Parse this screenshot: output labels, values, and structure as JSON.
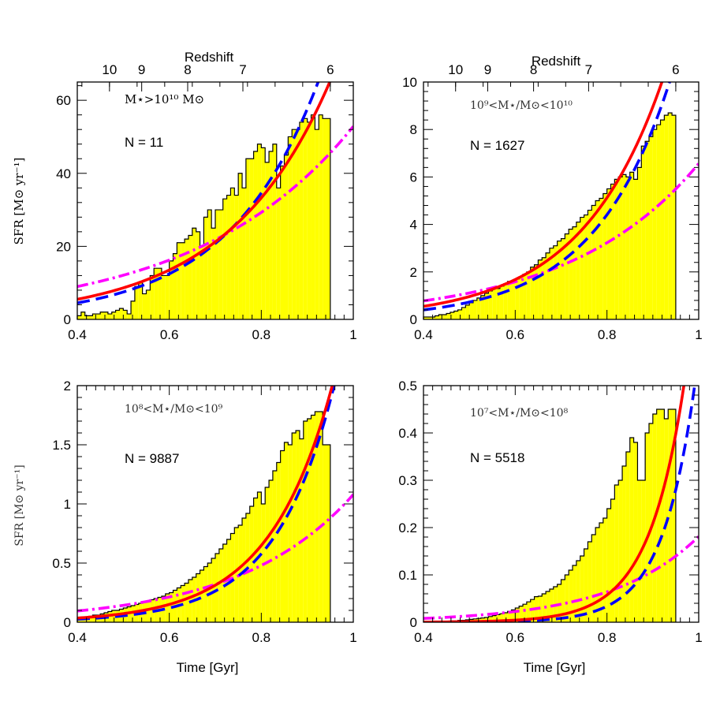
{
  "chart_data": [
    {
      "type": "histogram",
      "mass_label": "M⋆>10¹⁰ M⊙",
      "count_label": "N = 11",
      "xlim": [
        0.4,
        1.0
      ],
      "ylim": [
        0,
        65
      ],
      "yticks_major": [
        0,
        20,
        40,
        60
      ],
      "xticks_major": [
        0.4,
        0.6,
        0.8,
        1.0
      ],
      "ylabel": "SFR [M⊙ yr⁻¹]",
      "xlabel": "",
      "top_axis_label": "Redshift",
      "top_ticks": [
        10,
        9,
        8,
        7,
        6
      ],
      "hist_x_range": [
        0.4,
        0.95
      ],
      "hist_values": [
        1,
        2,
        1,
        1,
        1.5,
        1.5,
        2,
        2,
        1.5,
        2,
        2.5,
        3,
        2.5,
        1.5,
        5,
        9,
        10,
        7,
        8,
        12,
        14,
        14,
        12,
        12,
        16,
        18,
        21,
        21,
        22,
        23,
        25,
        24,
        20,
        28,
        30,
        25,
        30,
        30,
        33,
        34,
        36,
        34,
        40,
        36,
        44,
        44,
        46,
        48,
        47,
        43,
        46,
        48,
        36,
        42,
        45,
        50,
        52,
        52,
        54,
        55,
        54,
        56,
        52,
        56,
        55,
        55
      ],
      "curves": {
        "red_solid": {
          "type": "exp",
          "a": 5.5,
          "b": 4.5
        },
        "blue_dashed": {
          "type": "exp",
          "a": 4.5,
          "b": 5.1
        },
        "magenta_dashdot": {
          "type": "exp",
          "a": 9.0,
          "b": 2.95
        }
      }
    },
    {
      "type": "histogram",
      "mass_label": "10⁹<M⋆/M⊙<10¹⁰",
      "count_label": "N = 1627",
      "xlim": [
        0.4,
        1.0
      ],
      "ylim": [
        0,
        10
      ],
      "yticks_major": [
        0,
        2,
        4,
        6,
        8,
        10
      ],
      "xticks_major": [
        0.4,
        0.6,
        0.8,
        1.0
      ],
      "ylabel": "",
      "xlabel": "",
      "top_axis_label": "Redshift",
      "top_ticks": [
        10,
        9,
        8,
        7,
        6
      ],
      "hist_x_range": [
        0.4,
        0.95
      ],
      "hist_values": [
        0.1,
        0.1,
        0.1,
        0.15,
        0.2,
        0.2,
        0.25,
        0.3,
        0.35,
        0.4,
        0.5,
        0.6,
        0.7,
        0.8,
        0.9,
        1.0,
        1.1,
        1.2,
        1.3,
        1.3,
        1.4,
        1.5,
        1.6,
        1.6,
        1.7,
        1.8,
        1.9,
        2.0,
        2.2,
        2.3,
        2.5,
        2.6,
        2.8,
        3.0,
        3.1,
        3.3,
        3.4,
        3.6,
        3.8,
        3.9,
        4.1,
        4.3,
        4.4,
        4.6,
        4.8,
        5.0,
        5.1,
        5.3,
        5.5,
        5.7,
        5.9,
        6.0,
        6.1,
        6.0,
        6.2,
        5.9,
        6.4,
        7.3,
        7.5,
        7.7,
        8.0,
        8.2,
        8.4,
        8.6,
        8.7,
        8.6
      ],
      "curves": {
        "red_solid": {
          "type": "exp",
          "a": 0.55,
          "b": 5.58
        },
        "blue_dashed": {
          "type": "exp",
          "a": 0.4,
          "b": 6.0
        },
        "magenta_dashdot": {
          "type": "exp",
          "a": 0.78,
          "b": 3.55
        }
      }
    },
    {
      "type": "histogram",
      "mass_label": "10⁸<M⋆/M⊙<10⁹",
      "count_label": "N = 9887",
      "xlim": [
        0.4,
        1.0
      ],
      "ylim": [
        0,
        2
      ],
      "yticks_major": [
        0,
        0.5,
        1,
        1.5,
        2
      ],
      "xticks_major": [
        0.4,
        0.6,
        0.8,
        1.0
      ],
      "ylabel": "SFR [M⊙ yr⁻¹]",
      "xlabel": "Time [Gyr]",
      "top_axis_label": "",
      "top_ticks": [],
      "hist_x_range": [
        0.4,
        0.95
      ],
      "hist_values": [
        0.03,
        0.04,
        0.04,
        0.05,
        0.06,
        0.06,
        0.07,
        0.08,
        0.09,
        0.1,
        0.1,
        0.11,
        0.12,
        0.13,
        0.14,
        0.15,
        0.16,
        0.17,
        0.18,
        0.19,
        0.2,
        0.21,
        0.22,
        0.24,
        0.25,
        0.27,
        0.29,
        0.31,
        0.33,
        0.36,
        0.38,
        0.41,
        0.44,
        0.47,
        0.5,
        0.54,
        0.58,
        0.62,
        0.66,
        0.7,
        0.75,
        0.8,
        0.82,
        0.88,
        0.92,
        0.98,
        1.05,
        1.1,
        1.0,
        1.14,
        1.2,
        1.28,
        1.35,
        1.45,
        1.52,
        1.5,
        1.6,
        1.62,
        1.55,
        1.7,
        1.72,
        1.75,
        1.78,
        1.78,
        1.5,
        1.5
      ],
      "curves": {
        "red_solid": {
          "type": "exp",
          "a": 0.035,
          "b": 7.3
        },
        "blue_dashed": {
          "type": "exp",
          "a": 0.025,
          "b": 7.85
        },
        "magenta_dashdot": {
          "type": "exp",
          "a": 0.095,
          "b": 4.05
        }
      }
    },
    {
      "type": "histogram",
      "mass_label": "10⁷<M⋆/M⊙<10⁸",
      "count_label": "N = 5518",
      "xlim": [
        0.4,
        1.0
      ],
      "ylim": [
        0,
        0.5
      ],
      "yticks_major": [
        0,
        0.1,
        0.2,
        0.3,
        0.4,
        0.5
      ],
      "xticks_major": [
        0.4,
        0.6,
        0.8,
        1.0
      ],
      "ylabel": "",
      "xlabel": "Time [Gyr]",
      "top_axis_label": "",
      "top_ticks": [],
      "hist_x_range": [
        0.4,
        0.95
      ],
      "hist_values": [
        0.001,
        0.001,
        0.001,
        0.001,
        0.002,
        0.002,
        0.002,
        0.003,
        0.003,
        0.004,
        0.004,
        0.005,
        0.006,
        0.007,
        0.008,
        0.009,
        0.01,
        0.012,
        0.014,
        0.016,
        0.018,
        0.02,
        0.023,
        0.026,
        0.03,
        0.034,
        0.038,
        0.043,
        0.048,
        0.054,
        0.055,
        0.06,
        0.065,
        0.07,
        0.075,
        0.08,
        0.09,
        0.1,
        0.11,
        0.12,
        0.13,
        0.14,
        0.155,
        0.17,
        0.185,
        0.2,
        0.21,
        0.22,
        0.24,
        0.26,
        0.29,
        0.3,
        0.33,
        0.36,
        0.39,
        0.38,
        0.3,
        0.3,
        0.4,
        0.42,
        0.44,
        0.45,
        0.45,
        0.43,
        0.45,
        0.45
      ],
      "curves": {
        "red_solid": {
          "type": "exp",
          "a": 0.00033,
          "b": 12.9
        },
        "blue_dashed": {
          "type": "exp",
          "a": 0.00012,
          "b": 14.1
        },
        "magenta_dashdot": {
          "type": "exp",
          "a": 0.008,
          "b": 5.2
        }
      }
    }
  ],
  "colors": {
    "fill": "#ffff00",
    "red": "#ff0000",
    "blue": "#0000ff",
    "magenta": "#ff00ff",
    "axis": "#000000"
  }
}
